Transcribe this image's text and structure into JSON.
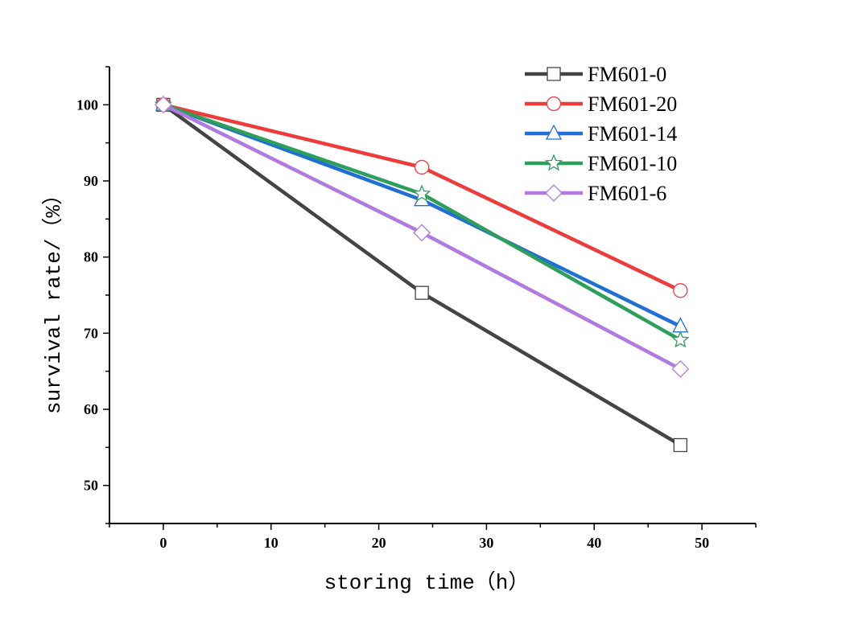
{
  "chart_data": {
    "type": "line",
    "title": "",
    "xlabel": "storing time（h）",
    "ylabel": "survival rate/（%）",
    "xlim": [
      -5,
      55
    ],
    "ylim": [
      45,
      105
    ],
    "xticks": [
      0,
      10,
      20,
      30,
      40,
      50
    ],
    "yticks": [
      50,
      60,
      70,
      80,
      90,
      100
    ],
    "grid": false,
    "legend_placement": "top-right",
    "x": [
      0,
      24,
      48
    ],
    "series": [
      {
        "name": "FM601-0",
        "values": [
          100,
          75.3,
          55.3
        ],
        "color": "#444444",
        "marker": "square"
      },
      {
        "name": "FM601-20",
        "values": [
          100,
          91.8,
          75.6
        ],
        "color": "#ee3b3b",
        "marker": "circle"
      },
      {
        "name": "FM601-14",
        "values": [
          100,
          87.5,
          70.9
        ],
        "color": "#1f6fd6",
        "marker": "triangle"
      },
      {
        "name": "FM601-10",
        "values": [
          100,
          88.3,
          69.1
        ],
        "color": "#2e9e5b",
        "marker": "star"
      },
      {
        "name": "FM601-6",
        "values": [
          100,
          83.2,
          65.3
        ],
        "color": "#b07ae0",
        "marker": "diamond"
      }
    ]
  }
}
